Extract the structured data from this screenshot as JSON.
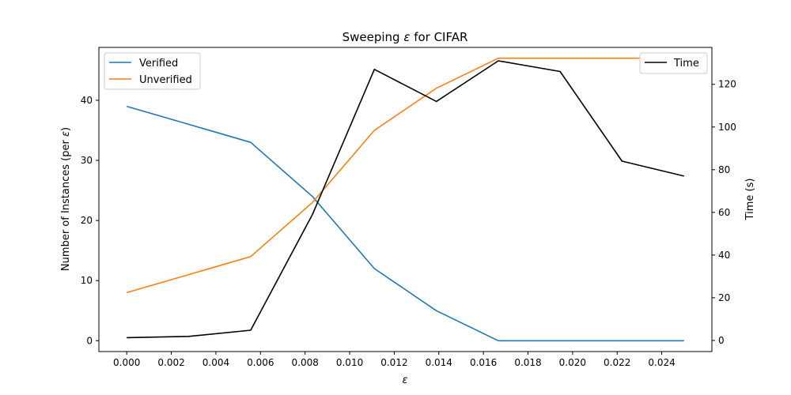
{
  "chart_data": {
    "type": "line",
    "title_prefix": "Sweeping ",
    "title_symbol": "ε",
    "title_suffix": " for CIFAR",
    "xlabel": "ε",
    "ylabel_left_prefix": "Number of Instances (per ",
    "ylabel_left_symbol": "ε",
    "ylabel_left_suffix": ")",
    "ylabel_right": "Time (s)",
    "x_ticks": [
      "0.000",
      "0.002",
      "0.004",
      "0.006",
      "0.008",
      "0.010",
      "0.012",
      "0.014",
      "0.016",
      "0.018",
      "0.020",
      "0.022",
      "0.024"
    ],
    "x_tick_values": [
      0.0,
      0.002,
      0.004,
      0.006,
      0.008,
      0.01,
      0.012,
      0.014,
      0.016,
      0.018,
      0.02,
      0.022,
      0.024
    ],
    "left_ticks": [
      0,
      10,
      20,
      30,
      40
    ],
    "right_ticks": [
      0,
      20,
      40,
      60,
      80,
      100,
      120
    ],
    "xlim": [
      -0.00125,
      0.02625
    ],
    "ylim_left": [
      -1.8,
      48.8
    ],
    "ylim_right": [
      -5.2,
      137.3
    ],
    "x": [
      0.0,
      0.00278,
      0.00556,
      0.00833,
      0.01111,
      0.01389,
      0.01667,
      0.01944,
      0.02222,
      0.025
    ],
    "series": [
      {
        "name": "Verified",
        "axis": "left",
        "color": "#1f77b4",
        "values": [
          39,
          36,
          33,
          24,
          12,
          5,
          0,
          0,
          0,
          0
        ]
      },
      {
        "name": "Unverified",
        "axis": "left",
        "color": "#ff7f0e",
        "values": [
          8,
          11,
          14,
          23,
          35,
          42,
          47,
          47,
          47,
          47
        ]
      },
      {
        "name": "Time",
        "axis": "right",
        "color": "#000000",
        "values": [
          1.3,
          1.9,
          4.8,
          59,
          127,
          112,
          131,
          126,
          84,
          77
        ]
      }
    ],
    "legend_left": "upper-left",
    "legend_right": "upper-right",
    "grid": false
  }
}
